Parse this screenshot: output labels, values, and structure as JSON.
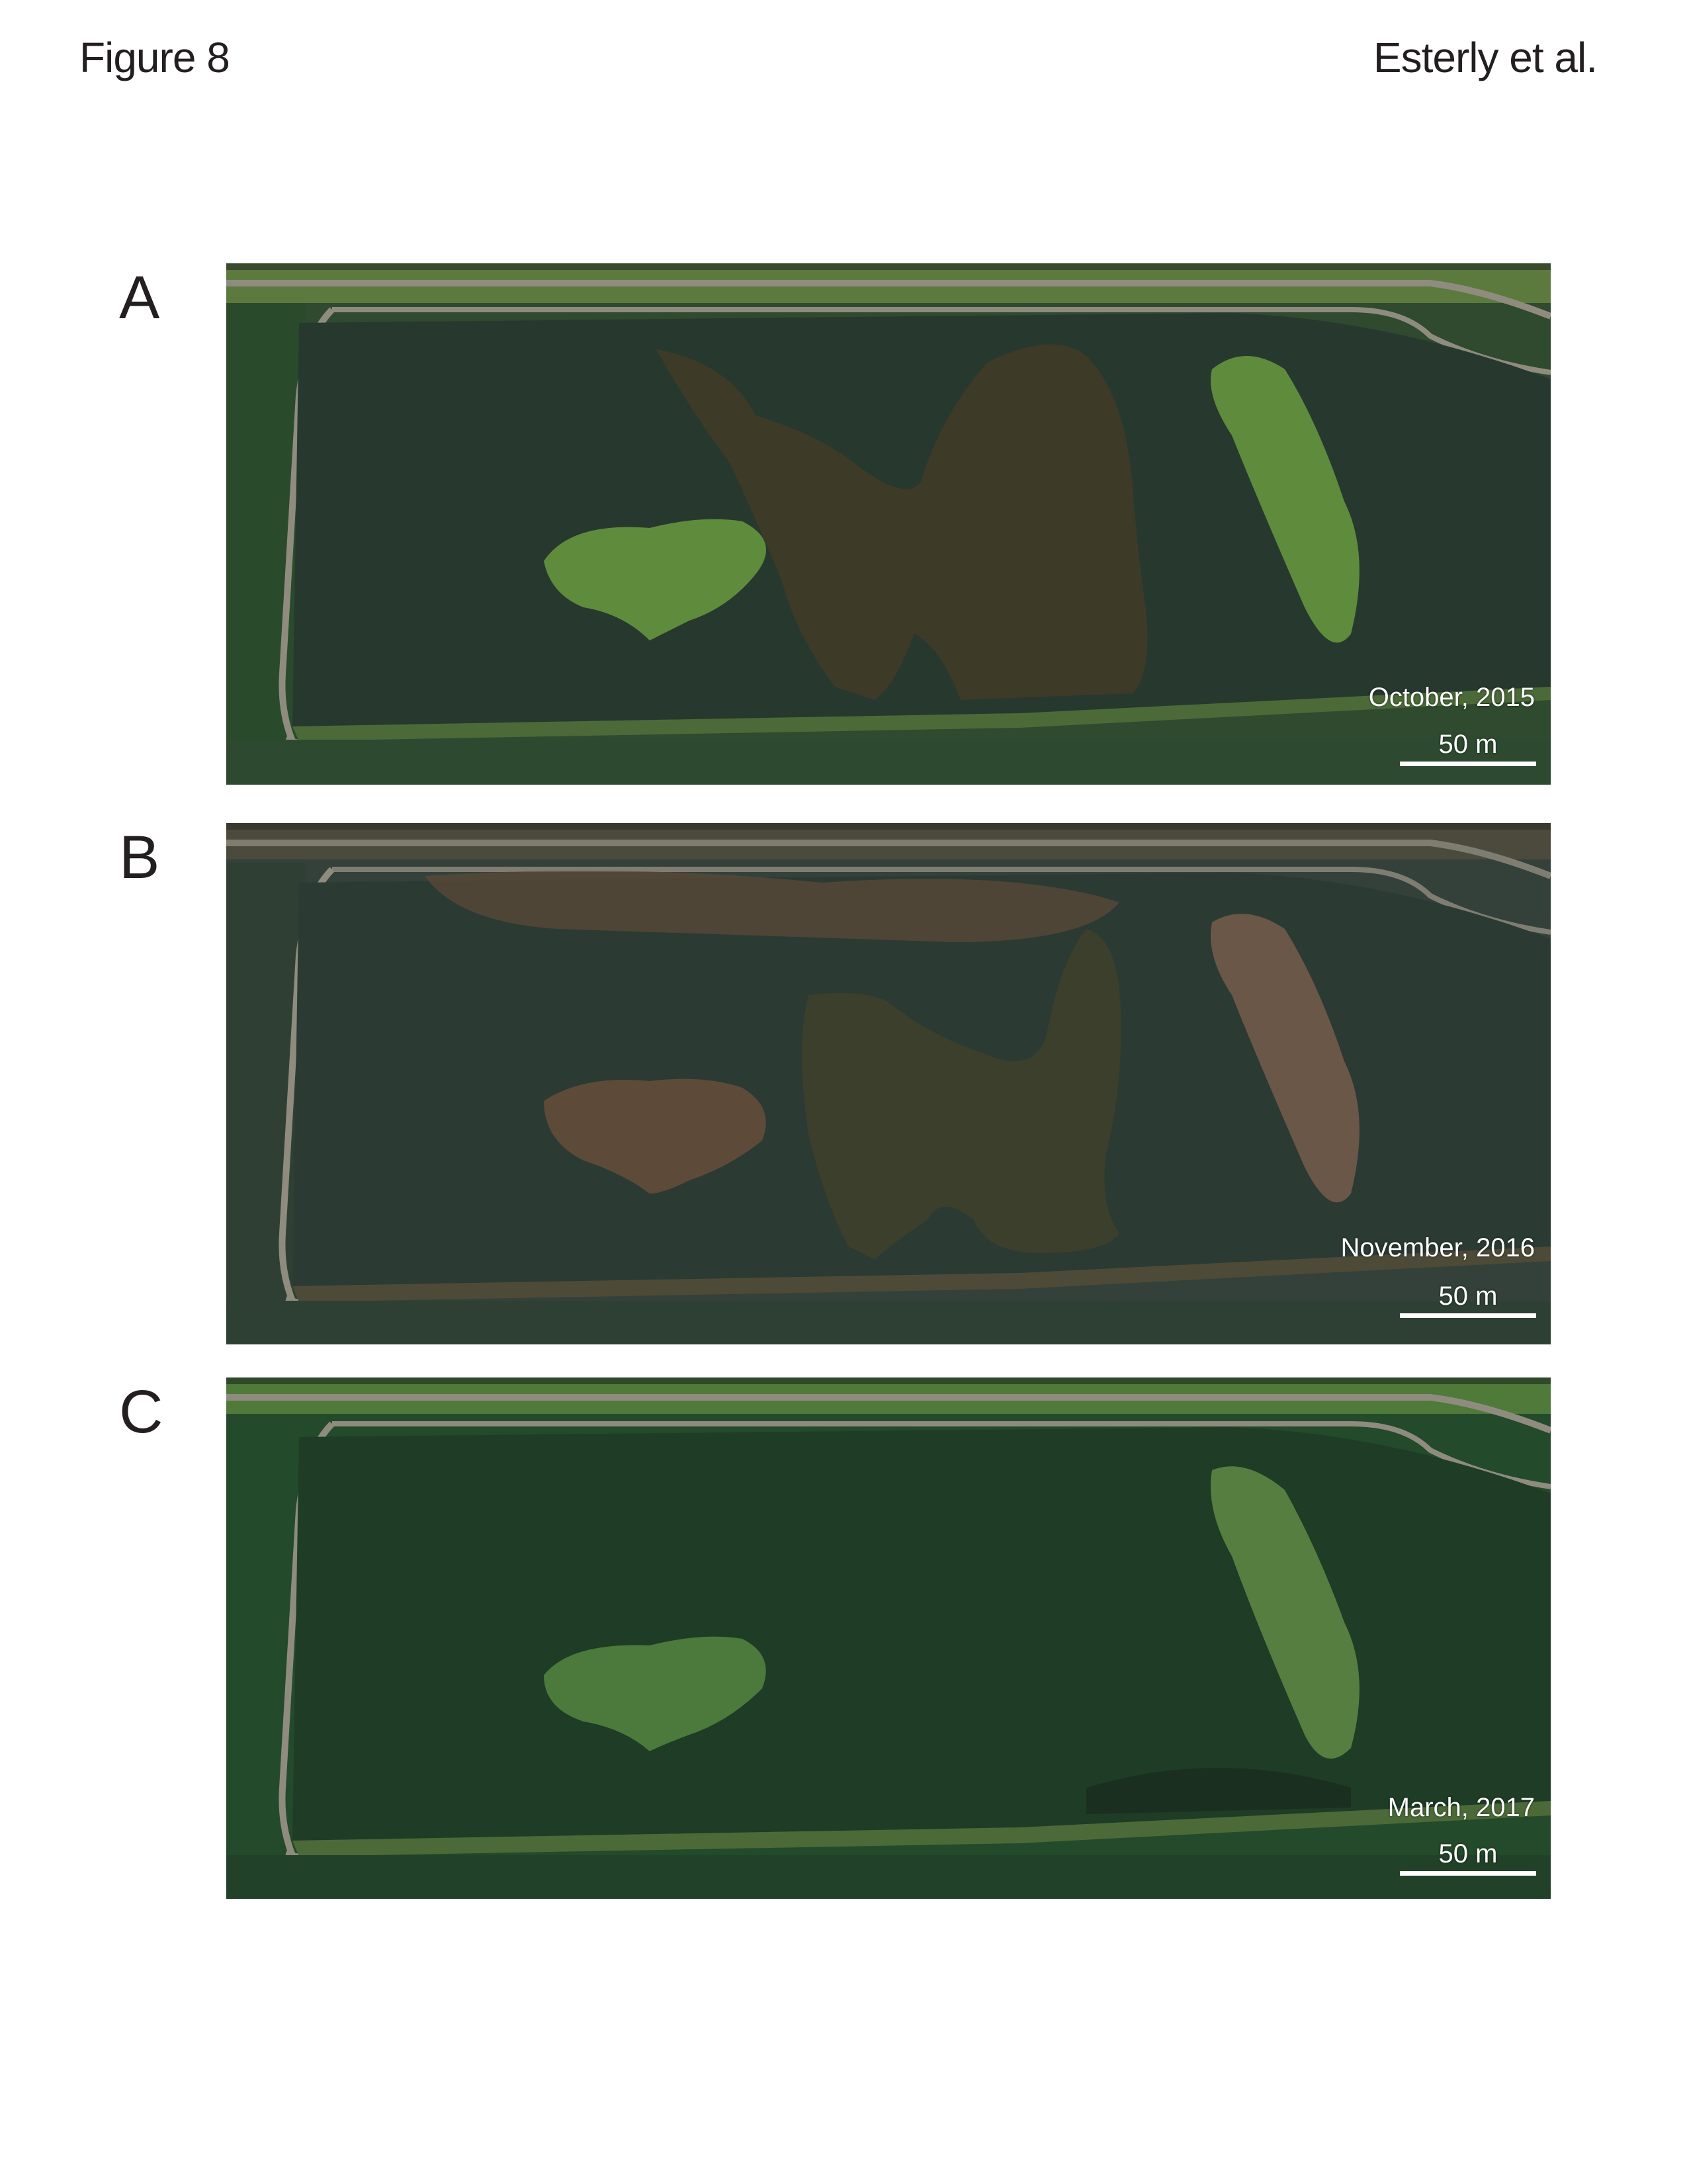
{
  "header": {
    "figure_label": "Figure 8",
    "authors": "Esterly et al."
  },
  "panels": [
    {
      "letter": "A",
      "date": "October, 2015",
      "scale_label": "50 m"
    },
    {
      "letter": "B",
      "date": "November, 2016",
      "scale_label": "50 m"
    },
    {
      "letter": "C",
      "date": "March, 2017",
      "scale_label": "50 m"
    }
  ],
  "colors": {
    "water_a": "#27382f",
    "water_b": "#2b3a33",
    "water_c": "#1e3c26",
    "road": "#8f8c7f",
    "levee": "#4b6a38",
    "vegetation_dark": "#3d3a28",
    "vegetation_brown": "#5e4a39",
    "island_green": "#5e8c3c"
  }
}
